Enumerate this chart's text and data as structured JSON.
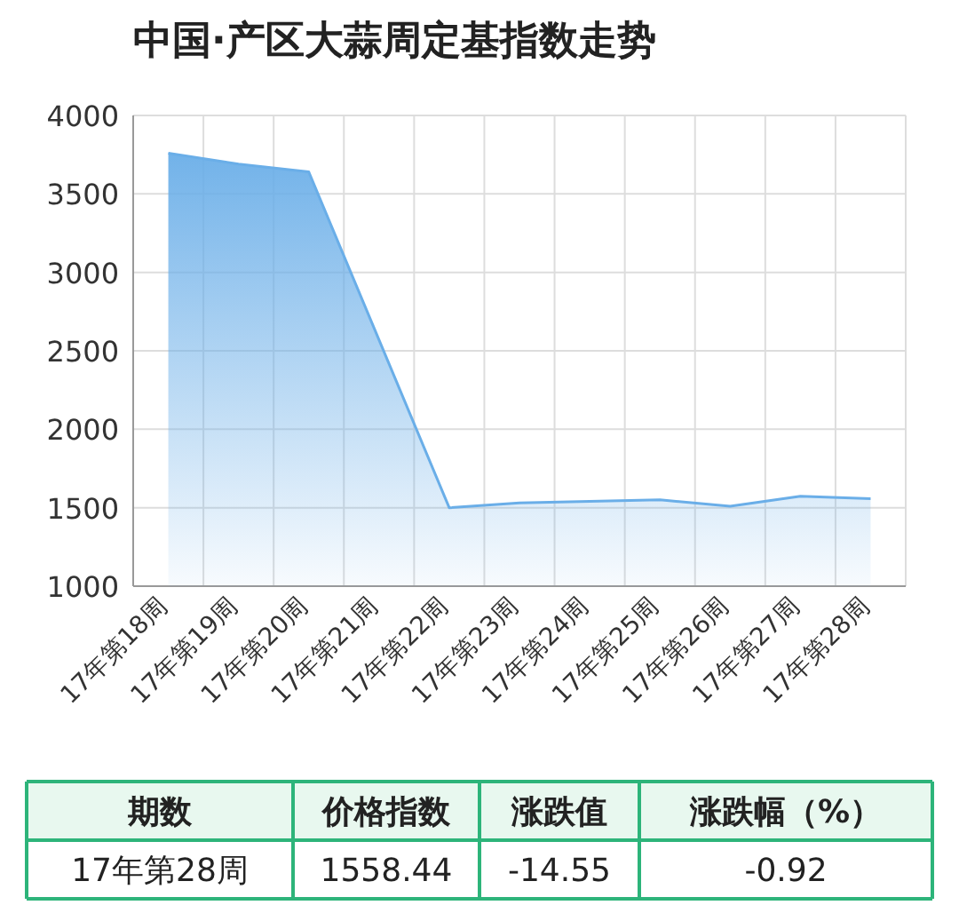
{
  "chart_data": {
    "type": "area",
    "title": "中国·产区大蒜周定基指数走势",
    "categories": [
      "17年第18周",
      "17年第19周",
      "17年第20周",
      "17年第21周",
      "17年第22周",
      "17年第23周",
      "17年第24周",
      "17年第25周",
      "17年第26周",
      "17年第27周",
      "17年第28周"
    ],
    "values": [
      3760,
      3690,
      3640,
      2570,
      1500,
      1530,
      1540,
      1550,
      1510,
      1573,
      1558
    ],
    "color": "#6aaee8",
    "ylim": [
      1000,
      4000
    ],
    "yticks": [
      1000,
      1500,
      2000,
      2500,
      3000,
      3500,
      4000
    ],
    "grid": true,
    "annotations": [
      "期数",
      "价格指数",
      "涨跌值",
      "涨跌幅（%）",
      "17年第28周",
      "1558.44",
      "-14.55",
      "-0.92"
    ]
  }
}
